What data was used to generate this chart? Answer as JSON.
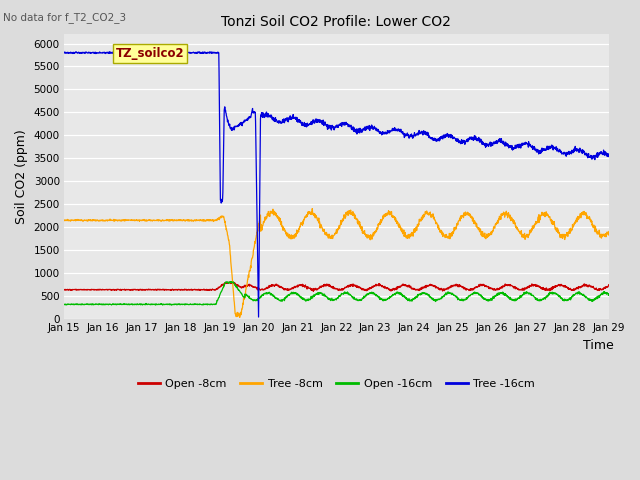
{
  "title": "Tonzi Soil CO2 Profile: Lower CO2",
  "no_data_text": "No data for f_T2_CO2_3",
  "legend_title": "TZ_soilco2",
  "xlabel": "Time",
  "ylabel": "Soil CO2 (ppm)",
  "ylim": [
    0,
    6200
  ],
  "yticks": [
    0,
    500,
    1000,
    1500,
    2000,
    2500,
    3000,
    3500,
    4000,
    4500,
    5000,
    5500,
    6000
  ],
  "fig_width": 6.4,
  "fig_height": 4.8,
  "dpi": 100,
  "background_color": "#dcdcdc",
  "plot_bg_color": "#e8e8e8",
  "series": {
    "open_8cm": {
      "color": "#cc0000",
      "label": "Open -8cm"
    },
    "tree_8cm": {
      "color": "#ffa500",
      "label": "Tree -8cm"
    },
    "open_16cm": {
      "color": "#00bb00",
      "label": "Open -16cm"
    },
    "tree_16cm": {
      "color": "#0000dd",
      "label": "Tree -16cm"
    }
  }
}
